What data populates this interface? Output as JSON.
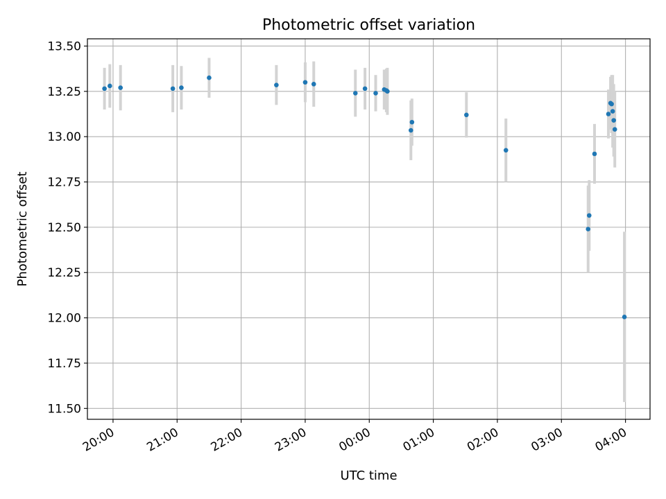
{
  "chart_data": {
    "type": "scatter",
    "title": "Photometric offset variation",
    "xlabel": "UTC time",
    "ylabel": "Photometric offset",
    "x_scale": "time",
    "x_range": [
      "19:36",
      "04:23"
    ],
    "x_ticks": [
      "20:00",
      "21:00",
      "22:00",
      "23:00",
      "00:00",
      "01:00",
      "02:00",
      "03:00",
      "04:00"
    ],
    "y_range": [
      11.44,
      13.54
    ],
    "y_ticks": [
      "11.50",
      "11.75",
      "12.00",
      "12.25",
      "12.50",
      "12.75",
      "13.00",
      "13.25",
      "13.50"
    ],
    "grid": true,
    "legend": "none",
    "series": [
      {
        "marker_color": "#1f77b4",
        "errorbar_color": "#d3d3d3",
        "points": [
          {
            "x": "19:52",
            "y": 13.265,
            "err": 0.115
          },
          {
            "x": "19:57",
            "y": 13.28,
            "err": 0.12
          },
          {
            "x": "20:07",
            "y": 13.27,
            "err": 0.125
          },
          {
            "x": "20:56",
            "y": 13.265,
            "err": 0.13
          },
          {
            "x": "21:04",
            "y": 13.27,
            "err": 0.12
          },
          {
            "x": "21:30",
            "y": 13.325,
            "err": 0.11
          },
          {
            "x": "22:33",
            "y": 13.285,
            "err": 0.11
          },
          {
            "x": "23:00",
            "y": 13.3,
            "err": 0.11
          },
          {
            "x": "23:08",
            "y": 13.29,
            "err": 0.125
          },
          {
            "x": "23:47",
            "y": 13.24,
            "err": 0.13
          },
          {
            "x": "23:56",
            "y": 13.265,
            "err": 0.115
          },
          {
            "x": "00:06",
            "y": 13.24,
            "err": 0.1
          },
          {
            "x": "00:14",
            "y": 13.26,
            "err": 0.11
          },
          {
            "x": "00:16",
            "y": 13.255,
            "err": 0.12
          },
          {
            "x": "00:17",
            "y": 13.25,
            "err": 0.13
          },
          {
            "x": "00:39",
            "y": 13.035,
            "err": 0.165
          },
          {
            "x": "00:40",
            "y": 13.08,
            "err": 0.13
          },
          {
            "x": "01:31",
            "y": 13.12,
            "err": 0.125
          },
          {
            "x": "02:08",
            "y": 12.925,
            "err": 0.175
          },
          {
            "x": "03:25",
            "y": 12.49,
            "err": 0.24
          },
          {
            "x": "03:26",
            "y": 12.565,
            "err": 0.195
          },
          {
            "x": "03:31",
            "y": 12.905,
            "err": 0.165
          },
          {
            "x": "03:44",
            "y": 13.125,
            "err": 0.135
          },
          {
            "x": "03:46",
            "y": 13.185,
            "err": 0.145
          },
          {
            "x": "03:47",
            "y": 13.18,
            "err": 0.16
          },
          {
            "x": "03:48",
            "y": 13.14,
            "err": 0.2
          },
          {
            "x": "03:49",
            "y": 13.09,
            "err": 0.2
          },
          {
            "x": "03:50",
            "y": 13.04,
            "err": 0.21
          },
          {
            "x": "03:59",
            "y": 12.005,
            "err": 0.47
          }
        ]
      }
    ]
  }
}
